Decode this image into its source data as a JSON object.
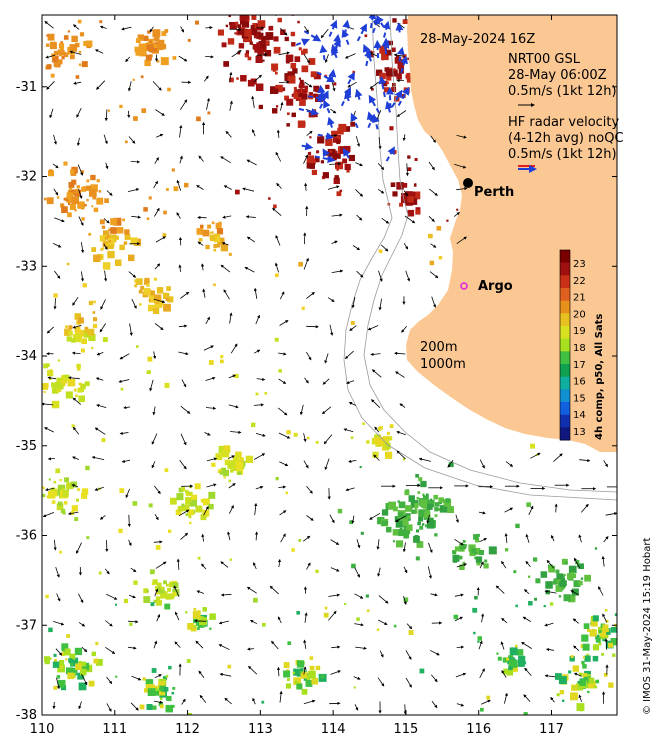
{
  "map": {
    "x_ticks": [
      "110",
      "111",
      "112",
      "113",
      "114",
      "115",
      "116",
      "117"
    ],
    "y_ticks": [
      "-31",
      "-32",
      "-33",
      "-34",
      "-35",
      "-36",
      "-37",
      "-38"
    ],
    "lon_range": [
      110,
      117.9
    ],
    "lat_range": [
      -38,
      -30.2
    ],
    "land_color": "#fbc893",
    "radar_arrow_color": "#1f3fd6"
  },
  "annotations": {
    "timestamp": "28-May-2024 16Z",
    "model_line1": "NRT00 GSL",
    "model_line2": "28-May 06:00Z",
    "model_line3": "0.5m/s (1kt 12h)",
    "radar_line1": "HF radar velocity",
    "radar_line2": "(4-12h avg) noQC",
    "radar_line3": "0.5m/s (1kt 12h)",
    "perth": "Perth",
    "argo": "Argo",
    "iso_200": "200m",
    "iso_1000": "1000m"
  },
  "colorbar": {
    "title": "4h comp, p50, All Sats",
    "ticks": [
      "23",
      "22",
      "21",
      "20",
      "19",
      "18",
      "17",
      "16",
      "15",
      "14",
      "13"
    ],
    "colors": [
      "#7a0000",
      "#a01010",
      "#c83018",
      "#e06020",
      "#e8901c",
      "#e8c020",
      "#d8e020",
      "#a8e020",
      "#40c040",
      "#10a050",
      "#10b0a0",
      "#1090d0",
      "#1060e0",
      "#1030b0",
      "#101880"
    ]
  },
  "credit": "© IMOS 31-May-2024 15:19 Hobart"
}
